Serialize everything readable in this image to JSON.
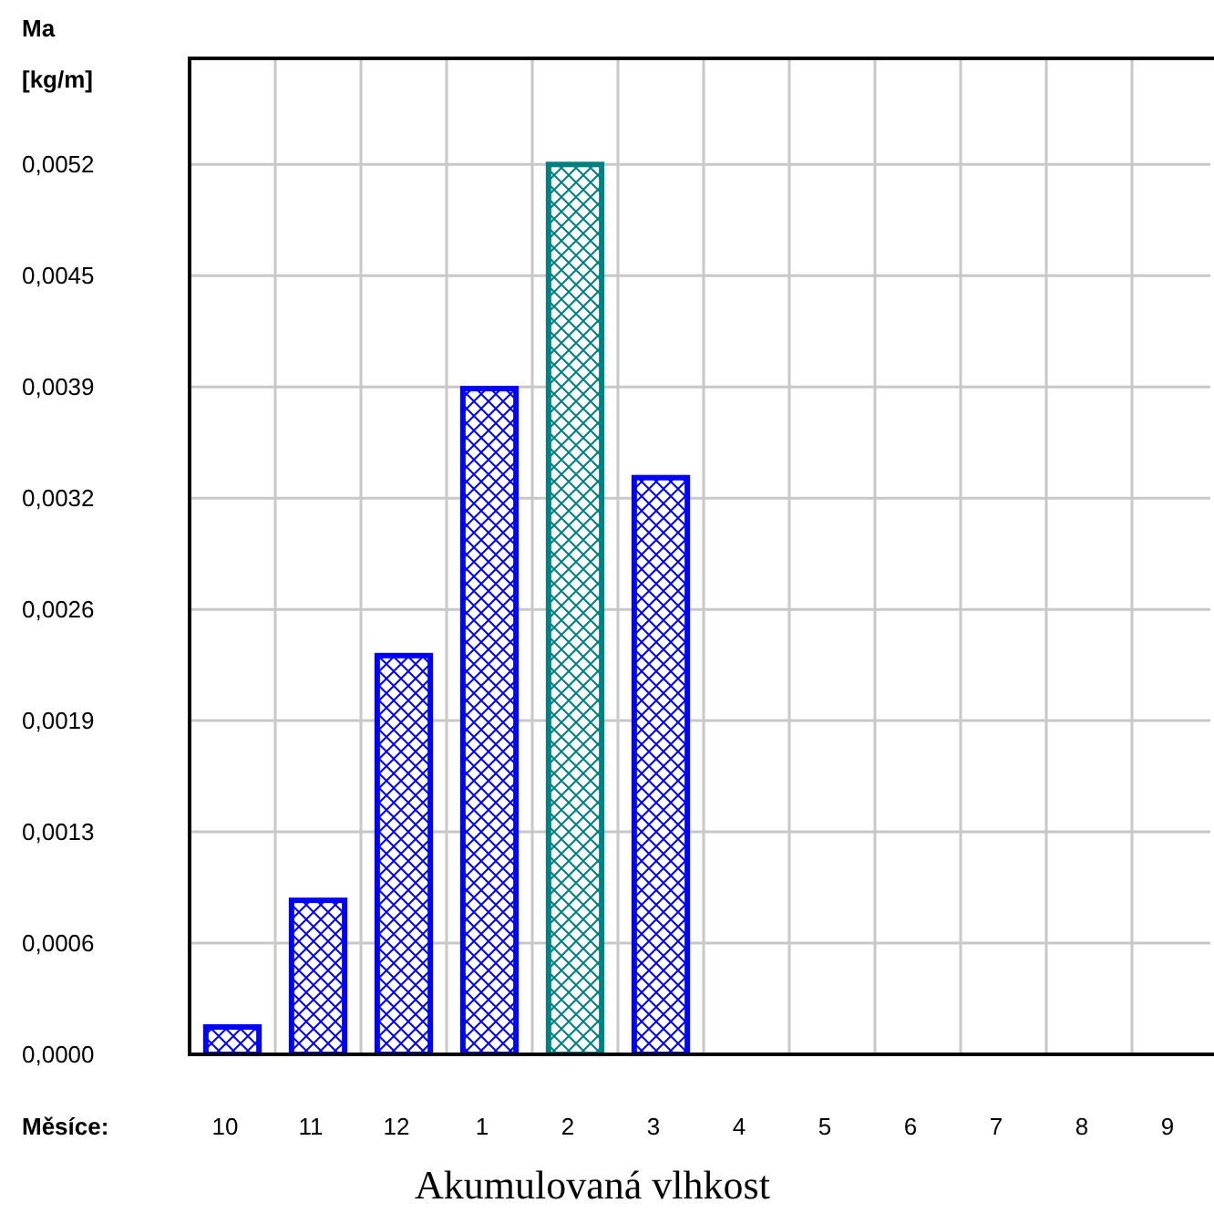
{
  "chart_data": {
    "type": "bar",
    "title": "Akumulovaná vlhkost",
    "ylabel": "Ma [kg/m]",
    "xlabel": "Měsíce:",
    "categories": [
      "10",
      "11",
      "12",
      "1",
      "2",
      "3",
      "4",
      "5",
      "6",
      "7",
      "8",
      "9"
    ],
    "values": [
      0.00016,
      0.0009,
      0.00233,
      0.00389,
      0.0052,
      0.00337,
      null,
      null,
      null,
      null,
      null,
      null
    ],
    "colors": [
      "#0000ff",
      "#0000ff",
      "#0000ff",
      "#0000ff",
      "#008080",
      "#0000ff",
      "#0000ff",
      "#0000ff",
      "#0000ff",
      "#0000ff",
      "#0000ff",
      "#0000ff"
    ],
    "ylim": [
      0,
      0.00582
    ],
    "yticks": [
      {
        "value": 0,
        "label": "0,0000"
      },
      {
        "value": 0.00065,
        "label": "0,0006"
      },
      {
        "value": 0.0013,
        "label": "0,0013"
      },
      {
        "value": 0.00195,
        "label": "0,0019"
      },
      {
        "value": 0.0026,
        "label": "0,0026"
      },
      {
        "value": 0.00325,
        "label": "0,0032"
      },
      {
        "value": 0.0039,
        "label": "0,0039"
      },
      {
        "value": 0.00455,
        "label": "0,0045"
      },
      {
        "value": 0.0052,
        "label": "0,0052"
      }
    ],
    "grid": true
  }
}
